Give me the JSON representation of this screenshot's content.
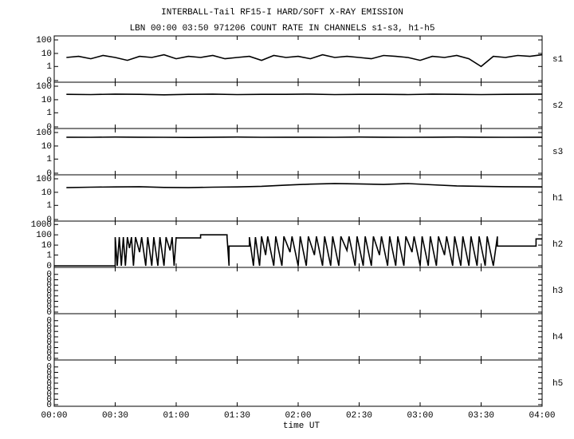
{
  "chart_data": {
    "type": "line",
    "title": "INTERBALL-Tail RF15-I HARD/SOFT X-RAY EMISSION",
    "subtitle": "LBN 00:00 03:50 971206  COUNT RATE IN CHANNELS s1-s3, h1-h5",
    "xlabel": "time UT",
    "xlim": [
      0,
      240
    ],
    "xticks": [
      {
        "value": 0,
        "label": "00:00"
      },
      {
        "value": 30,
        "label": "00:30"
      },
      {
        "value": 60,
        "label": "01:00"
      },
      {
        "value": 90,
        "label": "01:30"
      },
      {
        "value": 120,
        "label": "02:00"
      },
      {
        "value": 150,
        "label": "02:30"
      },
      {
        "value": 180,
        "label": "03:00"
      },
      {
        "value": 210,
        "label": "03:30"
      },
      {
        "value": 240,
        "label": "04:00"
      }
    ],
    "color": "#000000",
    "panels": [
      {
        "name": "s1",
        "yscale": "log",
        "ylim": [
          0,
          150
        ],
        "yticks": [
          0,
          1,
          10,
          100
        ],
        "x": [
          6,
          12,
          18,
          24,
          30,
          36,
          42,
          48,
          54,
          60,
          66,
          72,
          78,
          84,
          90,
          96,
          102,
          108,
          114,
          120,
          126,
          132,
          138,
          144,
          150,
          156,
          162,
          168,
          174,
          180,
          186,
          192,
          198,
          204,
          210,
          216,
          222,
          228,
          234,
          240
        ],
        "values": [
          5,
          6,
          4,
          7,
          5,
          3,
          6,
          5,
          8,
          4,
          6,
          5,
          7,
          4,
          5,
          6,
          3,
          7,
          5,
          6,
          4,
          8,
          5,
          6,
          5,
          4,
          7,
          6,
          5,
          3,
          6,
          5,
          7,
          4,
          1,
          6,
          5,
          7,
          6,
          8
        ]
      },
      {
        "name": "s2",
        "yscale": "log",
        "ylim": [
          0,
          150
        ],
        "yticks": [
          0,
          1,
          10,
          100
        ],
        "x": [
          6,
          18,
          30,
          42,
          54,
          66,
          78,
          90,
          102,
          114,
          126,
          138,
          150,
          162,
          174,
          186,
          198,
          210,
          222,
          240
        ],
        "values": [
          25,
          24,
          26,
          25,
          23,
          25,
          26,
          24,
          25,
          25,
          26,
          24,
          25,
          25,
          24,
          26,
          25,
          24,
          25,
          26
        ]
      },
      {
        "name": "s3",
        "yscale": "log",
        "ylim": [
          0,
          150
        ],
        "yticks": [
          0,
          1,
          10,
          100
        ],
        "x": [
          6,
          18,
          30,
          42,
          54,
          66,
          78,
          90,
          102,
          114,
          126,
          138,
          150,
          162,
          174,
          186,
          198,
          210,
          222,
          240
        ],
        "values": [
          45,
          44,
          46,
          45,
          44,
          43,
          45,
          46,
          44,
          45,
          45,
          44,
          46,
          45,
          44,
          45,
          46,
          45,
          44,
          45
        ]
      },
      {
        "name": "h1",
        "yscale": "log",
        "ylim": [
          0,
          150
        ],
        "yticks": [
          0,
          1,
          10,
          100
        ],
        "x": [
          6,
          18,
          30,
          42,
          54,
          66,
          78,
          90,
          102,
          114,
          126,
          138,
          150,
          162,
          174,
          186,
          198,
          210,
          222,
          240
        ],
        "values": [
          22,
          24,
          25,
          26,
          23,
          22,
          24,
          25,
          28,
          34,
          40,
          45,
          42,
          38,
          44,
          36,
          30,
          28,
          26,
          25
        ]
      },
      {
        "name": "h2",
        "yscale": "log",
        "ylim": [
          0,
          1500
        ],
        "yticks": [
          0,
          1,
          10,
          100,
          1000
        ],
        "x": [
          0,
          30,
          30,
          31,
          32,
          33,
          34,
          35,
          36,
          37,
          38,
          39,
          40,
          42,
          43,
          45,
          46,
          48,
          49,
          51,
          52,
          54,
          55,
          57,
          58,
          59,
          60,
          60,
          72,
          72,
          85,
          85,
          86,
          86,
          96,
          96,
          98,
          99,
          101,
          102,
          104,
          105,
          108,
          109,
          112,
          113,
          116,
          117,
          120,
          121,
          124,
          125,
          128,
          129,
          132,
          133,
          136,
          137,
          140,
          141,
          144,
          145,
          148,
          149,
          152,
          153,
          156,
          157,
          160,
          161,
          164,
          165,
          168,
          169,
          172,
          173,
          176,
          177,
          180,
          181,
          184,
          185,
          188,
          189,
          192,
          193,
          196,
          197,
          200,
          201,
          204,
          205,
          208,
          209,
          212,
          213,
          216,
          218,
          218,
          237,
          237,
          240
        ],
        "values": [
          0,
          0,
          60,
          0,
          60,
          0,
          60,
          0,
          60,
          5,
          60,
          0,
          60,
          2,
          60,
          0,
          60,
          0,
          60,
          0,
          60,
          0,
          60,
          3,
          60,
          0,
          60,
          50,
          50,
          100,
          100,
          60,
          0,
          8,
          8,
          60,
          0,
          60,
          0,
          70,
          1,
          70,
          0,
          70,
          0,
          70,
          2,
          70,
          0,
          70,
          0,
          70,
          1,
          70,
          0,
          70,
          0,
          70,
          0,
          70,
          3,
          70,
          0,
          70,
          0,
          70,
          0,
          70,
          1,
          70,
          0,
          70,
          0,
          70,
          0,
          70,
          2,
          70,
          0,
          70,
          0,
          70,
          0,
          70,
          1,
          70,
          0,
          70,
          0,
          70,
          0,
          70,
          0,
          70,
          0,
          70,
          0,
          70,
          8,
          8,
          40,
          40
        ]
      },
      {
        "name": "h3",
        "yscale": "linear",
        "ylim": [
          0,
          1.6
        ],
        "yticks": [
          0,
          {
            "value": 0.2,
            "label": "0"
          },
          {
            "value": 0.4,
            "label": "0"
          },
          {
            "value": 0.6,
            "label": "0"
          },
          {
            "value": 0.8,
            "label": "0"
          },
          {
            "value": 1.0,
            "label": "0"
          },
          {
            "value": 1.2,
            "label": "0"
          },
          {
            "value": 1.4,
            "label": "0"
          }
        ]
      },
      {
        "name": "h4",
        "yscale": "linear",
        "ylim": [
          0,
          1.6
        ],
        "yticks": [
          0,
          {
            "value": 0.2,
            "label": "0"
          },
          {
            "value": 0.4,
            "label": "0"
          },
          {
            "value": 0.6,
            "label": "0"
          },
          {
            "value": 0.8,
            "label": "0"
          },
          {
            "value": 1.0,
            "label": "0"
          },
          {
            "value": 1.2,
            "label": "0"
          },
          {
            "value": 1.4,
            "label": "0"
          }
        ]
      },
      {
        "name": "h5",
        "yscale": "linear",
        "ylim": [
          0,
          1.6
        ],
        "yticks": [
          0,
          {
            "value": 0.2,
            "label": "0"
          },
          {
            "value": 0.4,
            "label": "0"
          },
          {
            "value": 0.6,
            "label": "0"
          },
          {
            "value": 0.8,
            "label": "0"
          },
          {
            "value": 1.0,
            "label": "0"
          },
          {
            "value": 1.2,
            "label": "0"
          },
          {
            "value": 1.4,
            "label": "0"
          }
        ]
      }
    ]
  }
}
